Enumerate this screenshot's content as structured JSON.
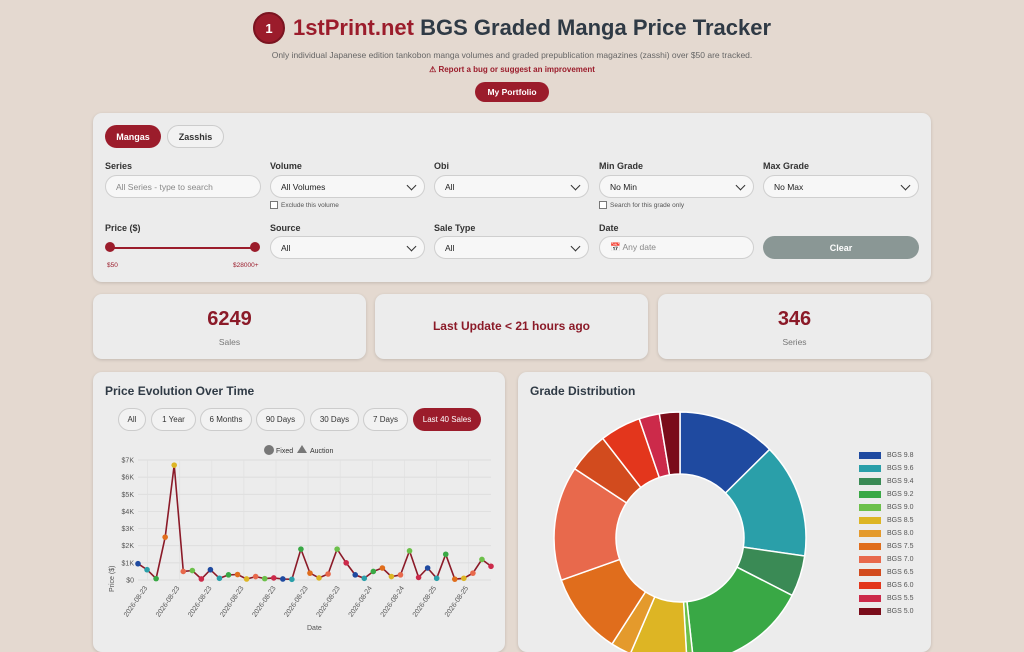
{
  "header": {
    "logo_text": "1",
    "brand": "1stPrint.net",
    "title_rest": "BGS Graded Manga Price Tracker",
    "subtitle": "Only individual Japanese edition tankobon manga volumes and graded prepublication magazines (zasshi) over $50 are tracked.",
    "bug_link": "⚠ Report a bug or suggest an improvement",
    "portfolio_button": "My Portfolio"
  },
  "filters": {
    "tabs": [
      "Mangas",
      "Zasshis"
    ],
    "series_label": "Series",
    "series_placeholder": "All Series - type to search",
    "volume_label": "Volume",
    "volume_value": "All Volumes",
    "exclude_volume": "Exclude this volume",
    "obi_label": "Obi",
    "obi_value": "All",
    "min_grade_label": "Min Grade",
    "min_grade_value": "No Min",
    "search_grade_only": "Search for this grade only",
    "max_grade_label": "Max Grade",
    "max_grade_value": "No Max",
    "price_label": "Price ($)",
    "price_min": "$50",
    "price_max": "$28000+",
    "source_label": "Source",
    "source_value": "All",
    "sale_type_label": "Sale Type",
    "sale_type_value": "All",
    "date_label": "Date",
    "date_placeholder": "📅 Any date",
    "clear_button": "Clear"
  },
  "stats": {
    "sales_count": "6249",
    "sales_label": "Sales",
    "last_update": "Last Update < 21 hours ago",
    "series_count": "346",
    "series_label": "Series"
  },
  "price_chart": {
    "title": "Price Evolution Over Time",
    "ranges": [
      "All",
      "1 Year",
      "6 Months",
      "90 Days",
      "30 Days",
      "7 Days",
      "Last 40 Sales"
    ],
    "active_range": "Last 40 Sales",
    "legend": [
      "Fixed",
      "Auction"
    ]
  },
  "chart_data": [
    {
      "type": "line",
      "title": "",
      "xlabel": "Date",
      "ylabel": "Price ($)",
      "ylim": [
        0,
        7000
      ],
      "yticks": [
        "$0",
        "$1K",
        "$2K",
        "$3K",
        "$4K",
        "$5K",
        "$6K",
        "$7K"
      ],
      "xticks": [
        "2026-08-23",
        "2026-08-23",
        "2026-08-23",
        "2026-08-23",
        "2026-08-23",
        "2026-08-23",
        "2026-08-23",
        "2026-08-24",
        "2026-08-24",
        "2026-08-25",
        "2026-08-25"
      ],
      "series": [
        {
          "name": "Fixed",
          "values": [
            950,
            600,
            80,
            2500,
            6700,
            500,
            550,
            60,
            600,
            100,
            300,
            320,
            60,
            200,
            80,
            120,
            60,
            40,
            1800,
            400,
            120,
            350,
            1800,
            1000,
            300,
            100,
            500,
            700,
            200,
            300,
            1700,
            150,
            700,
            100,
            1500,
            50,
            100,
            400,
            1200,
            800
          ]
        }
      ],
      "grid": true,
      "legend_position": "top"
    },
    {
      "type": "pie",
      "title": "Grade Distribution",
      "categories": [
        "BGS 9.8",
        "BGS 9.6",
        "BGS 9.4",
        "BGS 9.2",
        "BGS 9.0",
        "BGS 8.5",
        "BGS 8.0",
        "BGS 7.5",
        "BGS 7.0",
        "BGS 6.5",
        "BGS 6.0",
        "BGS 5.5",
        "BGS 5.0"
      ],
      "values": [
        12,
        14,
        5,
        15,
        0.8,
        7,
        2.5,
        10,
        14,
        5,
        5,
        2.5,
        2.5
      ],
      "colors": [
        "#1f4aa0",
        "#2a9fa9",
        "#3a8a55",
        "#39a845",
        "#6cc04a",
        "#ddb524",
        "#e49a2c",
        "#e06d1c",
        "#e8694c",
        "#d24b1e",
        "#e3361c",
        "#cc2a4a",
        "#7a0c1a"
      ],
      "legend_position": "right"
    }
  ]
}
